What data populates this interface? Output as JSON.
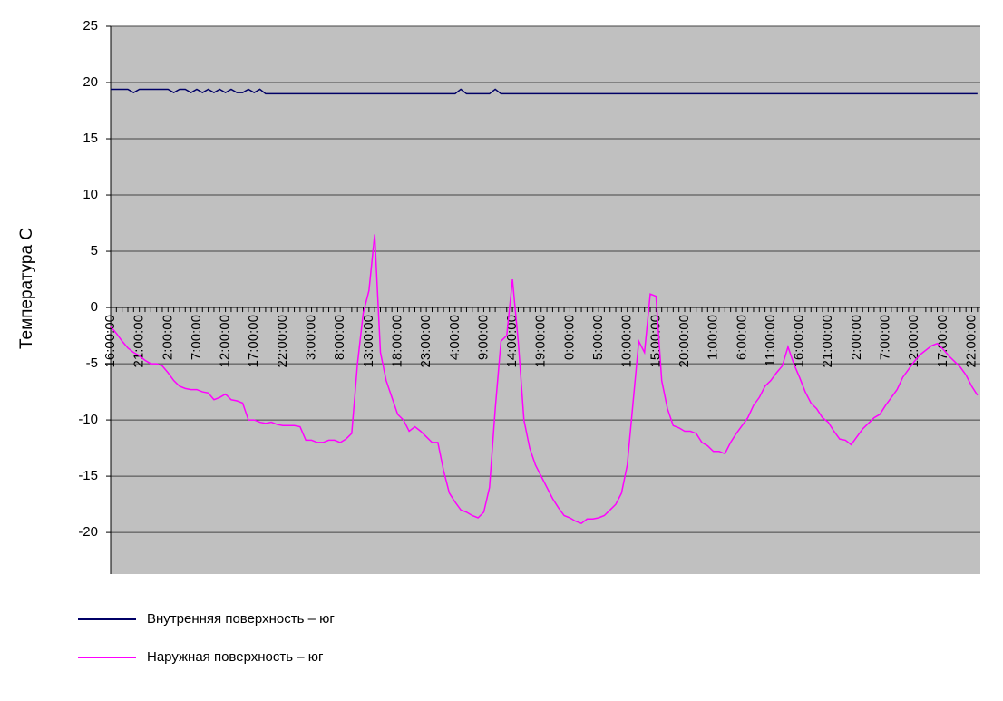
{
  "chart_data": {
    "type": "line",
    "y_label": "Температура С",
    "categories": [
      "16:00:00",
      null,
      null,
      null,
      null,
      "21:00:00",
      null,
      null,
      null,
      null,
      "2:00:00",
      null,
      null,
      null,
      null,
      "7:00:00",
      null,
      null,
      null,
      null,
      "12:00:00",
      null,
      null,
      null,
      null,
      "17:00:00",
      null,
      null,
      null,
      null,
      "22:00:00",
      null,
      null,
      null,
      null,
      "3:00:00",
      null,
      null,
      null,
      null,
      "8:00:00",
      null,
      null,
      null,
      null,
      "13:00:00",
      null,
      null,
      null,
      null,
      "18:00:00",
      null,
      null,
      null,
      null,
      "23:00:00",
      null,
      null,
      null,
      null,
      "4:00:00",
      null,
      null,
      null,
      null,
      "9:00:00",
      null,
      null,
      null,
      null,
      "14:00:00",
      null,
      null,
      null,
      null,
      "19:00:00",
      null,
      null,
      null,
      null,
      "0:00:00",
      null,
      null,
      null,
      null,
      "5:00:00",
      null,
      null,
      null,
      null,
      "10:00:00",
      null,
      null,
      null,
      null,
      "15:00:00",
      null,
      null,
      null,
      null,
      "20:00:00",
      null,
      null,
      null,
      null,
      "1:00:00",
      null,
      null,
      null,
      null,
      "6:00:00",
      null,
      null,
      null,
      null,
      "11:00:00",
      null,
      null,
      null,
      null,
      "16:00:00",
      null,
      null,
      null,
      null,
      "21:00:00",
      null,
      null,
      null,
      null,
      "2:00:00",
      null,
      null,
      null,
      null,
      "7:00:00",
      null,
      null,
      null,
      null,
      "12:00:00",
      null,
      null,
      null,
      null,
      "17:00:00",
      null,
      null,
      null,
      null,
      "22:00:00",
      null
    ],
    "series": [
      {
        "name": "Внутренняя поверхность – юг",
        "color": "#000066",
        "values": [
          19.4,
          19.4,
          19.4,
          19.4,
          19.1,
          19.4,
          19.4,
          19.4,
          19.4,
          19.4,
          19.4,
          19.1,
          19.4,
          19.4,
          19.1,
          19.4,
          19.1,
          19.4,
          19.1,
          19.4,
          19.1,
          19.4,
          19.1,
          19.1,
          19.4,
          19.1,
          19.4,
          19.0,
          19.0,
          19.0,
          19.0,
          19.0,
          19.0,
          19.0,
          19.0,
          19.0,
          19.0,
          19.0,
          19.0,
          19.0,
          19.0,
          19.0,
          19.0,
          19.0,
          19.0,
          19.0,
          19.0,
          19.0,
          19.0,
          19.0,
          19.0,
          19.0,
          19.0,
          19.0,
          19.0,
          19.0,
          19.0,
          19.0,
          19.0,
          19.0,
          19.0,
          19.4,
          19.0,
          19.0,
          19.0,
          19.0,
          19.0,
          19.4,
          19.0,
          19.0,
          19.0,
          19.0,
          19.0,
          19.0,
          19.0,
          19.0,
          19.0,
          19.0,
          19.0,
          19.0,
          19.0,
          19.0,
          19.0,
          19.0,
          19.0,
          19.0,
          19.0,
          19.0,
          19.0,
          19.0,
          19.0,
          19.0,
          19.0,
          19.0,
          19.0,
          19.0,
          19.0,
          19.0,
          19.0,
          19.0,
          19.0,
          19.0,
          19.0,
          19.0,
          19.0,
          19.0,
          19.0,
          19.0,
          19.0,
          19.0,
          19.0,
          19.0,
          19.0,
          19.0,
          19.0,
          19.0,
          19.0,
          19.0,
          19.0,
          19.0,
          19.0,
          19.0,
          19.0,
          19.0,
          19.0,
          19.0,
          19.0,
          19.0,
          19.0,
          19.0,
          19.0,
          19.0,
          19.0,
          19.0,
          19.0,
          19.0,
          19.0,
          19.0,
          19.0,
          19.0,
          19.0,
          19.0,
          19.0,
          19.0,
          19.0,
          19.0,
          19.0,
          19.0,
          19.0,
          19.0,
          19.0,
          19.0
        ]
      },
      {
        "name": "Наружная поверхность – юг",
        "color": "#ff00ff",
        "values": [
          -1.7,
          -2.3,
          -3,
          -3.6,
          -4,
          -4.3,
          -4.7,
          -5,
          -5,
          -5.2,
          -5.8,
          -6.5,
          -7,
          -7.2,
          -7.3,
          -7.3,
          -7.5,
          -7.6,
          -8.2,
          -8,
          -7.7,
          -8.2,
          -8.3,
          -8.5,
          -10,
          -10,
          -10.2,
          -10.3,
          -10.2,
          -10.4,
          -10.5,
          -10.5,
          -10.5,
          -10.6,
          -11.8,
          -11.8,
          -12,
          -12,
          -11.8,
          -11.8,
          -12,
          -11.7,
          -11.2,
          -5,
          -0.5,
          1.5,
          6.5,
          -4,
          -6.5,
          -8,
          -9.5,
          -10,
          -11,
          -10.6,
          -11,
          -11.5,
          -12,
          -12,
          -14.5,
          -16.5,
          -17.3,
          -18,
          -18.2,
          -18.5,
          -18.7,
          -18.2,
          -16,
          -9,
          -3,
          -2.5,
          2.5,
          -3,
          -10,
          -12.5,
          -14,
          -15,
          -16,
          -17,
          -17.8,
          -18.5,
          -18.7,
          -19,
          -19.2,
          -18.8,
          -18.8,
          -18.7,
          -18.5,
          -18,
          -17.5,
          -16.5,
          -14,
          -8.5,
          -3,
          -4,
          1.2,
          1,
          -6.5,
          -9,
          -10.5,
          -10.7,
          -11,
          -11,
          -11.2,
          -12,
          -12.3,
          -12.8,
          -12.8,
          -13,
          -12,
          -11.2,
          -10.5,
          -9.8,
          -8.7,
          -8,
          -7,
          -6.5,
          -5.8,
          -5.2,
          -3.5,
          -5,
          -6.2,
          -7.5,
          -8.5,
          -9,
          -9.8,
          -10.2,
          -11,
          -11.7,
          -11.8,
          -12.2,
          -11.5,
          -10.8,
          -10.3,
          -9.8,
          -9.5,
          -8.7,
          -8,
          -7.3,
          -6.2,
          -5.5,
          -4.8,
          -4.2,
          -3.8,
          -3.4,
          -3.2,
          -3.7,
          -4.3,
          -4.8,
          -5.3,
          -6,
          -7,
          -7.8
        ]
      }
    ],
    "ylim": [
      -23.7,
      25
    ],
    "yticks": [
      -20,
      -15,
      -10,
      -5,
      0,
      5,
      10,
      15,
      20,
      25
    ],
    "grid": true,
    "background": "#c0c0c0",
    "legend": "bottom"
  }
}
